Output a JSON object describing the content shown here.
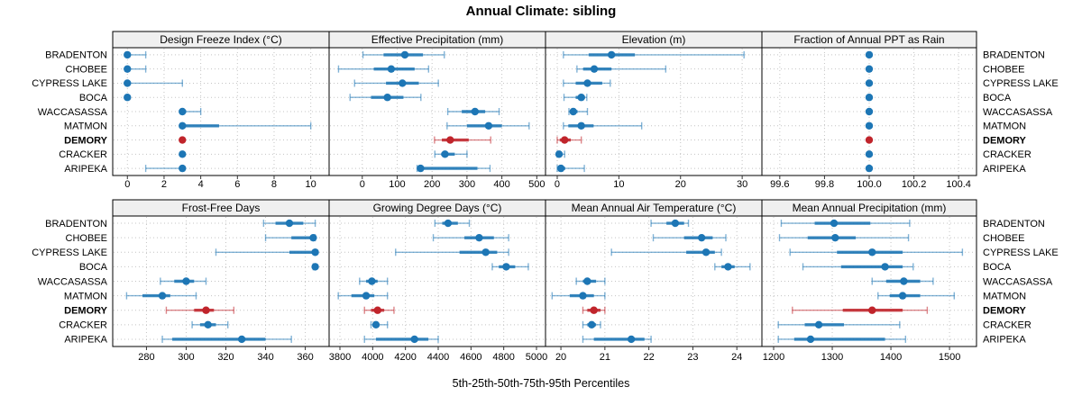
{
  "title": "Annual Climate: sibling",
  "caption": "5th-25th-50th-75th-95th Percentiles",
  "sites": [
    "BRADENTON",
    "CHOBEE",
    "CYPRESS LAKE",
    "BOCA",
    "WACCASASSA",
    "MATMON",
    "DEMORY",
    "CRACKER",
    "ARIPEKA"
  ],
  "highlight_site": "DEMORY",
  "percentiles": [
    5,
    25,
    50,
    75,
    95
  ],
  "colors": {
    "series": "#1d76b5",
    "highlight": "#c0242b",
    "strip_bg": "#f0f0f0",
    "grid": "#c4c4c4",
    "border": "#000000",
    "tick": "#333333"
  },
  "chart_data": [
    {
      "type": "dotplot-interval",
      "title": "Design Freeze Index (°C)",
      "grid_pos": {
        "row": 0,
        "col": 0
      },
      "xlim": [
        -0.8,
        11.0
      ],
      "ticks": [
        0,
        2,
        4,
        6,
        8,
        10
      ],
      "tick_labels": [
        "0",
        "2",
        "4",
        "6",
        "8",
        "10"
      ],
      "series": [
        [
          0,
          0,
          0,
          0,
          1
        ],
        [
          0,
          0,
          0,
          0,
          1
        ],
        [
          0,
          0,
          0,
          0,
          3
        ],
        [
          0,
          0,
          0,
          0,
          0
        ],
        [
          3,
          3,
          3,
          3.2,
          4
        ],
        [
          3,
          3,
          3,
          5,
          10
        ],
        [
          3,
          3,
          3,
          3,
          3
        ],
        [
          3,
          3,
          3,
          3,
          3
        ],
        [
          1,
          3,
          3,
          3,
          3
        ]
      ]
    },
    {
      "type": "dotplot-interval",
      "title": "Effective Precipitation (mm)",
      "grid_pos": {
        "row": 0,
        "col": 1
      },
      "xlim": [
        -95,
        525
      ],
      "ticks": [
        0,
        100,
        200,
        300,
        400,
        500
      ],
      "tick_labels": [
        "0",
        "100",
        "200",
        "300",
        "400",
        "500"
      ],
      "series": [
        [
          2,
          61,
          122,
          174,
          235
        ],
        [
          -68,
          33,
          83,
          150,
          190
        ],
        [
          -22,
          68,
          115,
          162,
          218
        ],
        [
          -35,
          25,
          72,
          118,
          168
        ],
        [
          245,
          285,
          323,
          352,
          392
        ],
        [
          243,
          300,
          362,
          400,
          478
        ],
        [
          207,
          228,
          252,
          305,
          368
        ],
        [
          208,
          226,
          237,
          265,
          300
        ],
        [
          157,
          162,
          167,
          330,
          366
        ]
      ]
    },
    {
      "type": "dotplot-interval",
      "title": "Elevation (m)",
      "grid_pos": {
        "row": 0,
        "col": 2
      },
      "xlim": [
        -1.9,
        33.2
      ],
      "ticks": [
        0,
        10,
        20,
        30
      ],
      "tick_labels": [
        "0",
        "10",
        "20",
        "30"
      ],
      "series": [
        [
          1.0,
          5.1,
          8.8,
          12.6,
          30.3
        ],
        [
          3.2,
          4.2,
          6.0,
          8.8,
          17.6
        ],
        [
          1.0,
          3.0,
          4.9,
          7.3,
          8.6
        ],
        [
          1.1,
          3.0,
          3.9,
          4.5,
          4.8
        ],
        [
          1.9,
          2.3,
          2.6,
          3.3,
          4.9
        ],
        [
          1.0,
          1.8,
          3.9,
          5.9,
          13.7
        ],
        [
          0,
          0.4,
          1.2,
          2.2,
          3.9
        ],
        [
          0,
          0,
          0.3,
          0.7,
          1.2
        ],
        [
          0,
          0.4,
          0.6,
          1.3,
          4.4
        ]
      ]
    },
    {
      "type": "dotplot-interval",
      "title": "Fraction of Annual PPT as Rain",
      "grid_pos": {
        "row": 0,
        "col": 3
      },
      "xlim": [
        99.52,
        100.48
      ],
      "ticks": [
        99.6,
        99.8,
        100.0,
        100.2,
        100.4
      ],
      "tick_labels": [
        "99.6",
        "99.8",
        "100.0",
        "100.2",
        "100.4"
      ],
      "series": [
        [
          100,
          100,
          100,
          100,
          100
        ],
        [
          100,
          100,
          100,
          100,
          100
        ],
        [
          100,
          100,
          100,
          100,
          100
        ],
        [
          100,
          100,
          100,
          100,
          100
        ],
        [
          100,
          100,
          100,
          100,
          100
        ],
        [
          100,
          100,
          100,
          100,
          100
        ],
        [
          100,
          100,
          100,
          100,
          100
        ],
        [
          100,
          100,
          100,
          100,
          100
        ],
        [
          100,
          100,
          100,
          100,
          100
        ]
      ]
    },
    {
      "type": "dotplot-interval",
      "title": "Frost-Free Days",
      "grid_pos": {
        "row": 1,
        "col": 0
      },
      "xlim": [
        263,
        372
      ],
      "ticks": [
        280,
        300,
        320,
        340,
        360
      ],
      "tick_labels": [
        "280",
        "300",
        "320",
        "340",
        "360"
      ],
      "series": [
        [
          339,
          345,
          352,
          359,
          365
        ],
        [
          340,
          353,
          364,
          365,
          365
        ],
        [
          315,
          352,
          365,
          365,
          365
        ],
        [
          364,
          365,
          365,
          365,
          365
        ],
        [
          287,
          294,
          300,
          304,
          310
        ],
        [
          270,
          278,
          288,
          292,
          305
        ],
        [
          290,
          304,
          310,
          314,
          324
        ],
        [
          303,
          307,
          311,
          315,
          321
        ],
        [
          288,
          293,
          328,
          340,
          353
        ]
      ]
    },
    {
      "type": "dotplot-interval",
      "title": "Growing Degree Days (°C)",
      "grid_pos": {
        "row": 1,
        "col": 1
      },
      "xlim": [
        3734,
        5055
      ],
      "ticks": [
        3800,
        4000,
        4200,
        4400,
        4600,
        4800,
        5000
      ],
      "tick_labels": [
        "3800",
        "4000",
        "4200",
        "4400",
        "4600",
        "4800",
        "5000"
      ],
      "series": [
        [
          4380,
          4425,
          4460,
          4520,
          4590
        ],
        [
          4370,
          4560,
          4650,
          4740,
          4830
        ],
        [
          4140,
          4530,
          4690,
          4760,
          4830
        ],
        [
          4730,
          4770,
          4815,
          4870,
          4950
        ],
        [
          3920,
          3960,
          3995,
          4030,
          4090
        ],
        [
          3790,
          3870,
          3960,
          4010,
          4090
        ],
        [
          3950,
          3990,
          4030,
          4070,
          4130
        ],
        [
          3990,
          4005,
          4020,
          4040,
          4090
        ],
        [
          3950,
          4020,
          4255,
          4340,
          4400
        ]
      ]
    },
    {
      "type": "dotplot-interval",
      "title": "Mean Annual Air Temperature (°C)",
      "grid_pos": {
        "row": 1,
        "col": 2
      },
      "xlim": [
        19.65,
        24.57
      ],
      "ticks": [
        20,
        21,
        22,
        23,
        24
      ],
      "tick_labels": [
        "20",
        "21",
        "22",
        "23",
        "24"
      ],
      "series": [
        [
          22.05,
          22.4,
          22.6,
          22.8,
          22.9
        ],
        [
          22.1,
          22.8,
          23.2,
          23.45,
          23.75
        ],
        [
          21.15,
          22.85,
          23.3,
          23.5,
          23.65
        ],
        [
          23.5,
          23.65,
          23.8,
          23.95,
          24.3
        ],
        [
          20.35,
          20.5,
          20.6,
          20.8,
          21.0
        ],
        [
          19.8,
          20.2,
          20.5,
          20.75,
          21.0
        ],
        [
          20.5,
          20.6,
          20.75,
          20.9,
          21.0
        ],
        [
          20.5,
          20.6,
          20.7,
          20.8,
          20.9
        ],
        [
          20.5,
          20.75,
          21.6,
          21.9,
          22.05
        ]
      ]
    },
    {
      "type": "dotplot-interval",
      "title": "Mean Annual Precipitation (mm)",
      "grid_pos": {
        "row": 1,
        "col": 3
      },
      "xlim": [
        1180,
        1546
      ],
      "ticks": [
        1200,
        1300,
        1400,
        1500
      ],
      "tick_labels": [
        "1200",
        "1300",
        "1400",
        "1500"
      ],
      "series": [
        [
          1213,
          1270,
          1303,
          1365,
          1432
        ],
        [
          1210,
          1258,
          1305,
          1340,
          1430
        ],
        [
          1228,
          1308,
          1368,
          1420,
          1522
        ],
        [
          1250,
          1315,
          1390,
          1420,
          1438
        ],
        [
          1368,
          1392,
          1422,
          1450,
          1472
        ],
        [
          1378,
          1398,
          1420,
          1450,
          1508
        ],
        [
          1232,
          1318,
          1368,
          1420,
          1462
        ],
        [
          1208,
          1253,
          1277,
          1320,
          1415
        ],
        [
          1208,
          1235,
          1263,
          1390,
          1425
        ]
      ]
    }
  ]
}
